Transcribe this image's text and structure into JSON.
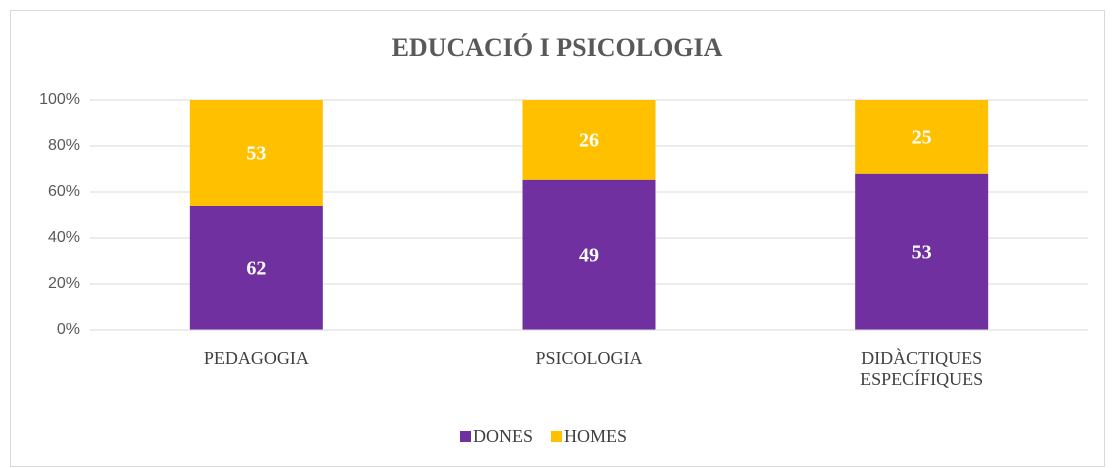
{
  "chart_data": {
    "type": "bar",
    "stacking": "percent",
    "title": "EDUCACIÓ I PSICOLOGIA",
    "categories": [
      "PEDAGOGIA",
      "PSICOLOGIA",
      "DIDÀCTIQUES ESPECÍFIQUES"
    ],
    "series": [
      {
        "name": "DONES",
        "color": "#7030a0",
        "values": [
          62,
          49,
          53
        ]
      },
      {
        "name": "HOMES",
        "color": "#ffc000",
        "values": [
          53,
          26,
          25
        ]
      }
    ],
    "ylim": [
      0,
      100
    ],
    "yticks": [
      {
        "value": 0,
        "label": "0%"
      },
      {
        "value": 20,
        "label": "20%"
      },
      {
        "value": 40,
        "label": "40%"
      },
      {
        "value": 60,
        "label": "60%"
      },
      {
        "value": 80,
        "label": "80%"
      },
      {
        "value": 100,
        "label": "100%"
      }
    ],
    "grid": true,
    "legend": "bottom"
  }
}
